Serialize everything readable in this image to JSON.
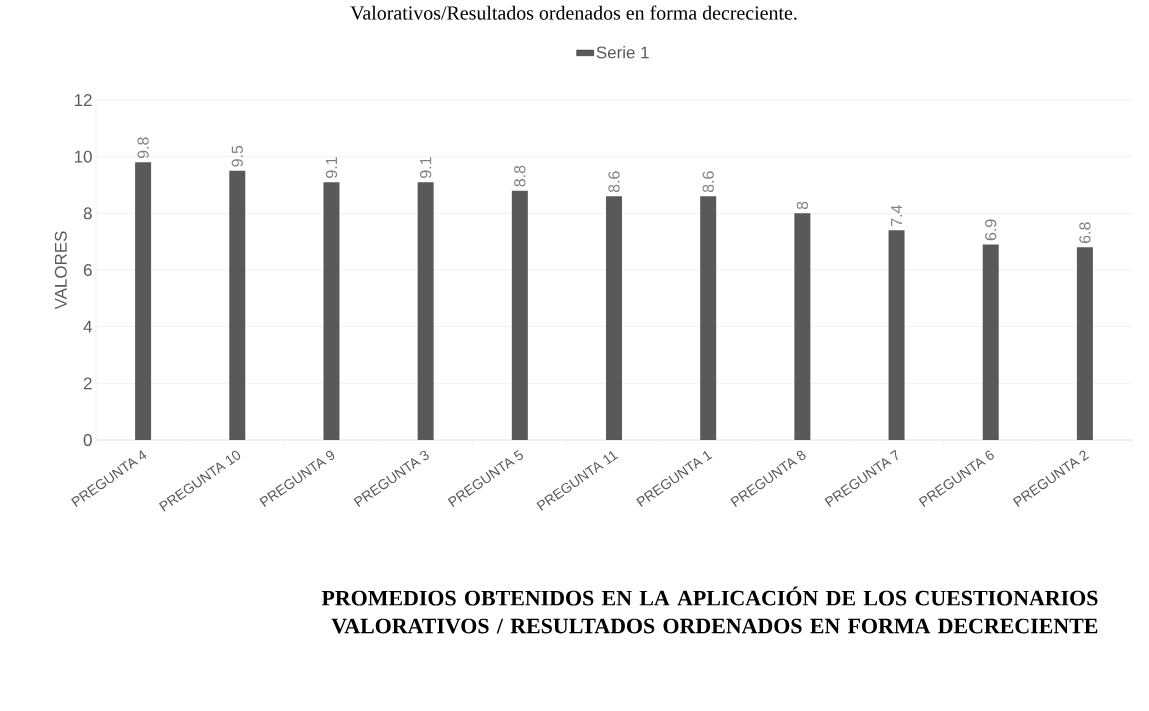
{
  "chart_data": {
    "type": "bar",
    "title": "PROMEDIOS OBTENIDOS EN LA APLICACIÓN DE LOS CUESTIONARIOS VALORATIVOS / RESULTADOS ORDENADOS EN FORMA DECRECIENTE",
    "annotations": [
      "Valorativos/Resultados ordenados en forma decreciente."
    ],
    "ylabel": "VALORES",
    "categories": [
      "PREGUNTA 4",
      "PREGUNTA 10",
      "PREGUNTA 9",
      "PREGUNTA 3",
      "PREGUNTA 5",
      "PREGUNTA 11",
      "PREGUNTA 1",
      "PREGUNTA 8",
      "PREGUNTA 7",
      "PREGUNTA 6",
      "PREGUNTA 2"
    ],
    "series": [
      {
        "name": "Serie 1",
        "color": "#595959",
        "values": [
          9.8,
          9.5,
          9.1,
          9.1,
          8.8,
          8.6,
          8.6,
          8,
          7.4,
          6.9,
          6.8
        ]
      }
    ],
    "ylim": [
      0,
      12
    ],
    "yticks": [
      0,
      2,
      4,
      6,
      8,
      10,
      12
    ],
    "grid": "y",
    "legend": "top",
    "data_labels": true
  }
}
